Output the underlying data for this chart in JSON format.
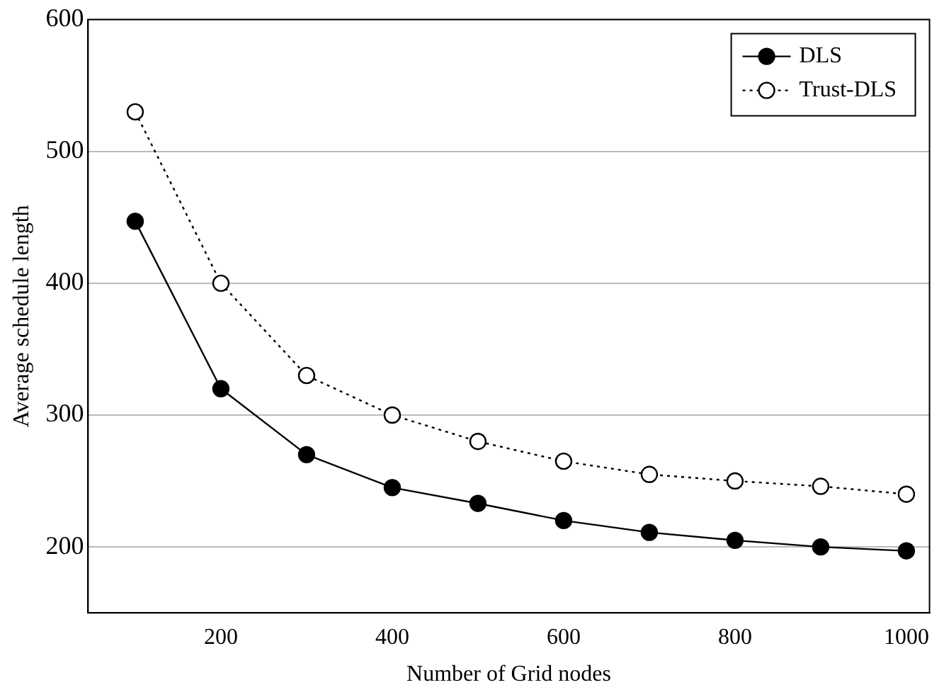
{
  "chart_data": {
    "type": "line",
    "xlabel": "Number of Grid nodes",
    "ylabel": "Average schedule length",
    "x": [
      100,
      200,
      300,
      400,
      500,
      600,
      700,
      800,
      900,
      1000
    ],
    "series": [
      {
        "name": "DLS",
        "color": "#000000",
        "line_style": "solid",
        "values": [
          447,
          320,
          270,
          245,
          233,
          220,
          211,
          205,
          200,
          197
        ]
      },
      {
        "name": "Trust-DLS",
        "color": "#000000",
        "line_style": "dotted",
        "values": [
          530,
          400,
          330,
          300,
          280,
          265,
          255,
          250,
          246,
          240
        ]
      }
    ],
    "xlim": [
      45,
      1027
    ],
    "xticks": [
      200,
      400,
      600,
      800,
      1000
    ],
    "ylim": [
      150,
      600
    ],
    "yticks": [
      200,
      300,
      400,
      500,
      600
    ],
    "grid": "y",
    "legend": "top right",
    "marker": "circle"
  }
}
